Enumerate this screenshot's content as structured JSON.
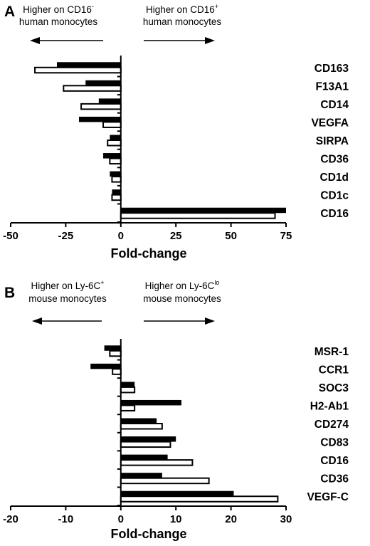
{
  "chart_data": [
    {
      "type": "bar",
      "orientation": "horizontal",
      "panel": "A",
      "notes": {
        "left": {
          "line1_pre": "Higher on CD16",
          "line1_sup": "-",
          "line2": "human monocytes"
        },
        "right": {
          "line1_pre": "Higher on CD16",
          "line1_sup": "+",
          "line2": "human monocytes"
        }
      },
      "categories": [
        "CD163",
        "F13A1",
        "CD14",
        "VEGFA",
        "SIRPA",
        "CD36",
        "CD1d",
        "CD1c",
        "CD16"
      ],
      "series": [
        {
          "style": "solid",
          "values": [
            -29,
            -16,
            -10,
            -19,
            -5,
            -8,
            -5,
            -4,
            75
          ]
        },
        {
          "style": "open",
          "values": [
            -39,
            -26,
            -18,
            -8,
            -6,
            -5,
            -4,
            -4,
            70
          ]
        }
      ],
      "xlim": [
        -50,
        75
      ],
      "xticks": [
        -50,
        -25,
        0,
        25,
        50,
        75
      ],
      "xtick_labels": [
        "-50",
        "-25",
        "0",
        "25",
        "50",
        "75"
      ],
      "xlabel": "Fold-change",
      "ylabel": "",
      "grid": false,
      "legend": "none"
    },
    {
      "type": "bar",
      "orientation": "horizontal",
      "panel": "B",
      "notes": {
        "left": {
          "line1_pre": "Higher on Ly-6C",
          "line1_sup": "+",
          "line2": "mouse monocytes"
        },
        "right": {
          "line1_pre": "Higher on Ly-6C",
          "line1_sup": "lo",
          "line2": "mouse monocytes"
        }
      },
      "categories": [
        "MSR-1",
        "CCR1",
        "SOC3",
        "H2-Ab1",
        "CD274",
        "CD83",
        "CD16",
        "CD36",
        "VEGF-C"
      ],
      "series": [
        {
          "style": "solid",
          "values": [
            -3,
            -5.5,
            2.5,
            11,
            6.5,
            10,
            8.5,
            7.5,
            20.5
          ]
        },
        {
          "style": "open",
          "values": [
            -2,
            -1.5,
            2.5,
            2.5,
            7.5,
            9,
            13,
            16,
            28.5
          ]
        }
      ],
      "xlim": [
        -20,
        30
      ],
      "xticks": [
        -20,
        -10,
        0,
        10,
        20,
        30
      ],
      "xtick_labels": [
        "-20",
        "-10",
        "0",
        "10",
        "20",
        "30"
      ],
      "xlabel": "Fold-change",
      "ylabel": "",
      "grid": false,
      "legend": "none"
    }
  ]
}
